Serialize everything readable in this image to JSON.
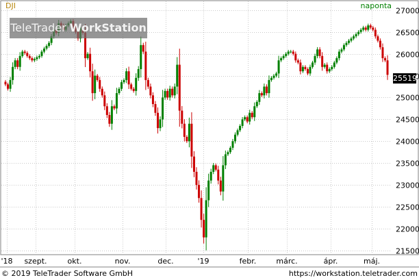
{
  "header": {
    "symbol": "DJI",
    "period": "naponta"
  },
  "watermark": {
    "brand": "TeleTrader",
    "product": "WorkStation"
  },
  "footer": {
    "copyright": "© 2019 TeleTrader Software GmbH",
    "url": "https://workstation.teletrader.com"
  },
  "colors": {
    "up_candle": "#008000",
    "down_candle": "#cc0000",
    "grid": "#c8c8c8",
    "frame": "#808080",
    "symbol": "#b8860b",
    "period": "#008000"
  },
  "chart_data": {
    "type": "candlestick",
    "title": "",
    "xlabel": "",
    "ylabel": "",
    "ylim": [
      21420,
      27200
    ],
    "y_ticks": [
      21500,
      22000,
      22500,
      23000,
      23500,
      24000,
      24500,
      25000,
      25500,
      26000,
      26500,
      27000
    ],
    "y_tick_labels": [
      "21500",
      "22000",
      "22500",
      "23000",
      "23500",
      "24000",
      "24500",
      "25000",
      "25500",
      "26000",
      "26500",
      "27000"
    ],
    "x_tick_labels": [
      "'18",
      "szept.",
      "okt.",
      "nov.",
      "dec.",
      "'19",
      "febr.",
      "márc.",
      "ápr.",
      "máj."
    ],
    "last_price": "25519",
    "grid": true,
    "series": [
      {
        "close": [
          25300,
          25200,
          25400,
          25700,
          25850,
          25700,
          25950,
          26050,
          26020,
          25950,
          25900,
          25850,
          25880,
          25920,
          25950,
          26050,
          26120,
          26180,
          26250,
          26400,
          26550,
          26480,
          26700,
          26650,
          26550,
          26650,
          26700,
          26750,
          26620,
          26500,
          26350,
          26600,
          26480,
          25900,
          26000,
          25600,
          25100,
          25500,
          25400,
          25200,
          25050,
          24800,
          24600,
          24400,
          24800,
          24750,
          25100,
          25200,
          25350,
          25400,
          25600,
          25300,
          25200,
          25150,
          25450,
          25650,
          26200,
          26050,
          25400,
          25250,
          25050,
          24850,
          24650,
          24300,
          24500,
          25000,
          25150,
          25000,
          25200,
          25050,
          25250,
          25750,
          24700,
          24400,
          24100,
          24000,
          24400,
          23650,
          23300,
          23000,
          22700,
          22200,
          21800,
          22650,
          23100,
          23300,
          23450,
          23350,
          23100,
          22850,
          23450,
          23700,
          23750,
          23850,
          24000,
          24150,
          24250,
          24350,
          24500,
          24550,
          24450,
          24650,
          24550,
          24800,
          24900,
          25100,
          25050,
          25250,
          25100,
          25400,
          25450,
          25500,
          25550,
          25850,
          25900,
          25950,
          26000,
          26050,
          26050,
          26000,
          25850,
          25800,
          25600,
          25700,
          25650,
          25550,
          25700,
          25800,
          25950,
          26100,
          25950,
          25700,
          25750,
          25600,
          25650,
          25700,
          25800,
          25900,
          26050,
          26100,
          26200,
          26250,
          26300,
          26350,
          26400,
          26450,
          26500,
          26550,
          26600,
          26550,
          26650,
          26600,
          26550,
          26400,
          26300,
          26150,
          25900,
          25850,
          25519
        ]
      }
    ]
  }
}
